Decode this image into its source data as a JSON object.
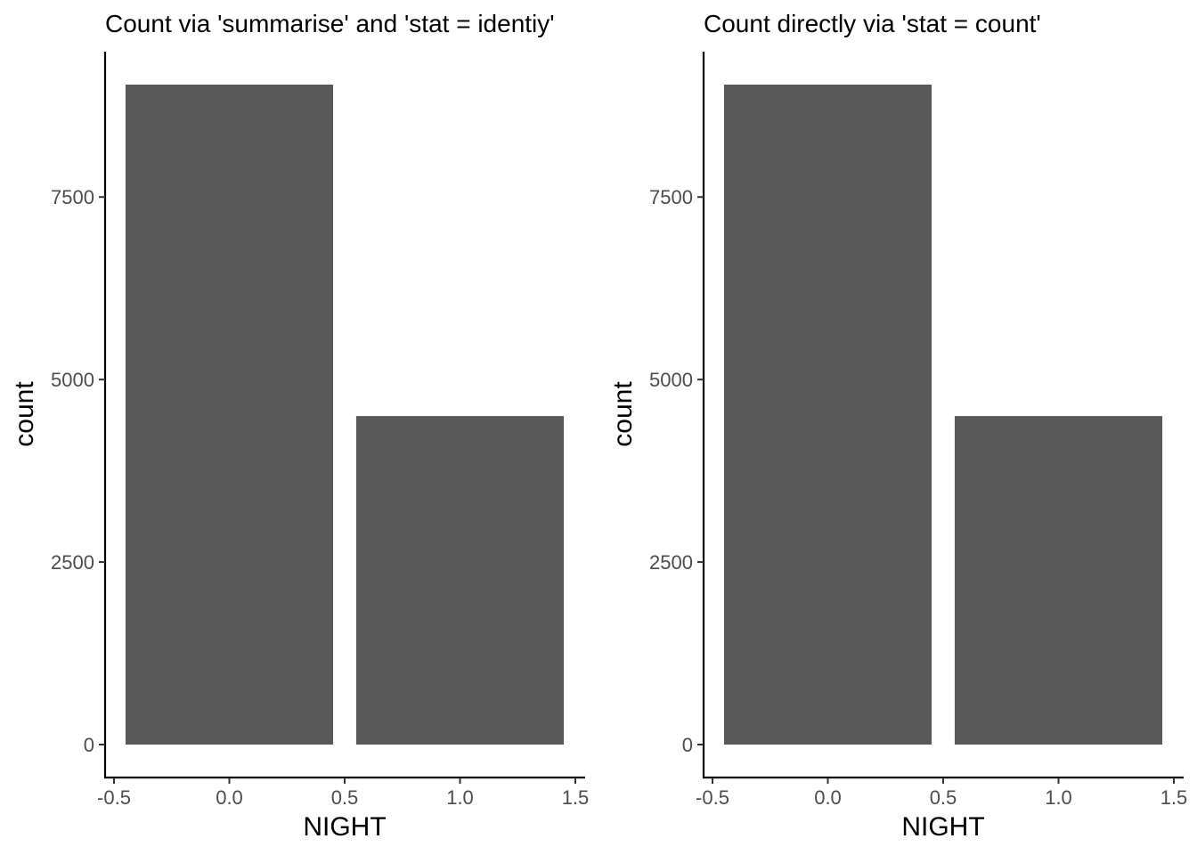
{
  "chart_data": [
    {
      "type": "bar",
      "title": "Count via 'summarise' and 'stat = identiy'",
      "xlabel": "NIGHT",
      "ylabel": "count",
      "x": [
        0,
        1
      ],
      "values": [
        9040,
        4500
      ],
      "bar_width": 0.9,
      "xlim": [
        -0.5,
        1.5
      ],
      "ylim": [
        0,
        9040
      ],
      "xticks": [
        -0.5,
        0.0,
        0.5,
        1.0,
        1.5
      ],
      "xtick_labels": [
        "-0.5",
        "0.0",
        "0.5",
        "1.0",
        "1.5"
      ],
      "yticks": [
        0,
        2500,
        5000,
        7500
      ],
      "ytick_labels": [
        "0",
        "2500",
        "5000",
        "7500"
      ],
      "grid": false,
      "legend": "none",
      "bar_color": "#595959"
    },
    {
      "type": "bar",
      "title": "Count directly via 'stat = count'",
      "xlabel": "NIGHT",
      "ylabel": "count",
      "x": [
        0,
        1
      ],
      "values": [
        9040,
        4500
      ],
      "bar_width": 0.9,
      "xlim": [
        -0.5,
        1.5
      ],
      "ylim": [
        0,
        9040
      ],
      "xticks": [
        -0.5,
        0.0,
        0.5,
        1.0,
        1.5
      ],
      "xtick_labels": [
        "-0.5",
        "0.0",
        "0.5",
        "1.0",
        "1.5"
      ],
      "yticks": [
        0,
        2500,
        5000,
        7500
      ],
      "ytick_labels": [
        "0",
        "2500",
        "5000",
        "7500"
      ],
      "grid": false,
      "legend": "none",
      "bar_color": "#595959"
    }
  ]
}
